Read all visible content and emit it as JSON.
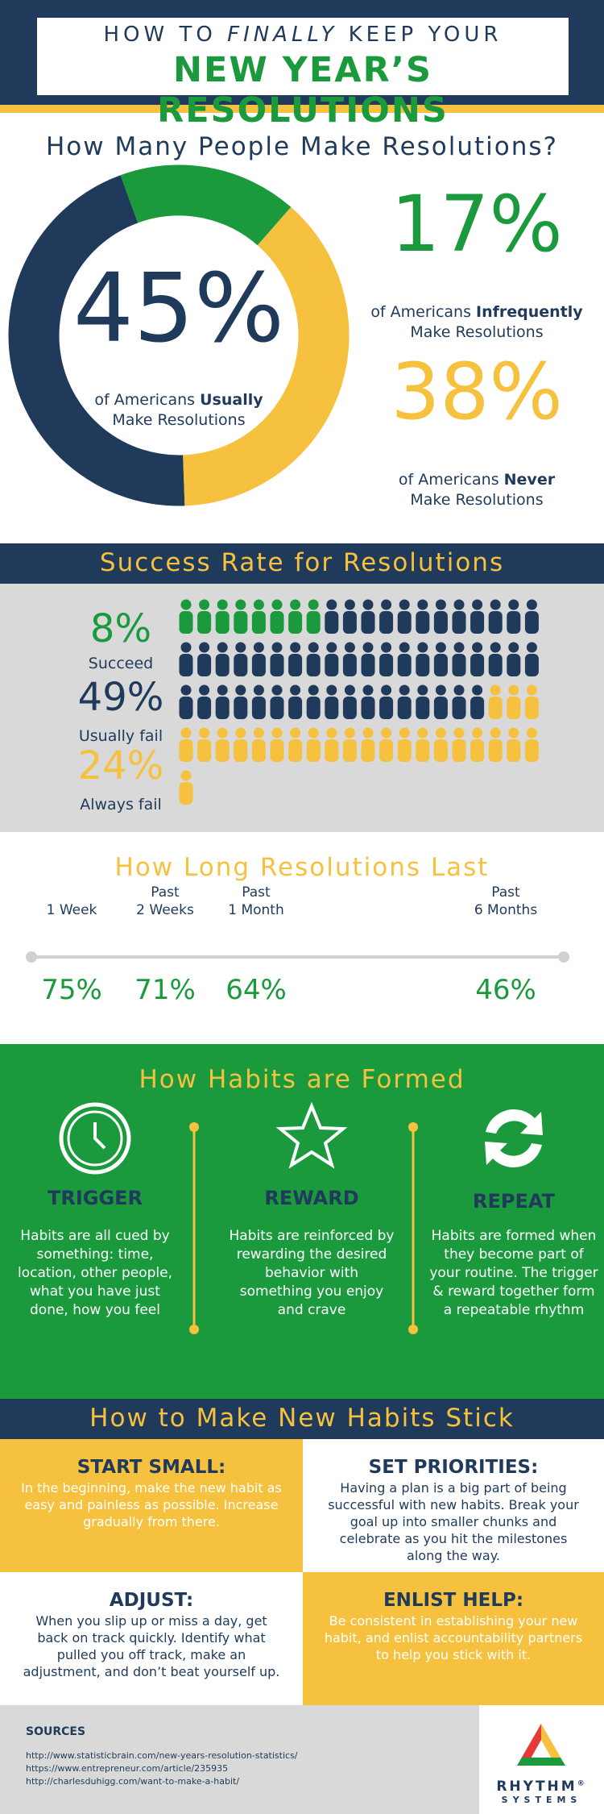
{
  "header": {
    "line1_start": "HOW TO",
    "line1_emphasis": "FINALLY",
    "line1_end": "KEEP YOUR",
    "line2": "NEW YEAR’S RESOLUTIONS"
  },
  "resolutions": {
    "title": "How Many People Make Resolutions?",
    "segments": [
      {
        "value": 45,
        "label": "45%",
        "text_start": "of Americans",
        "text_bold": "Usually",
        "text_end": "Make Resolutions",
        "color": "#1f3a5a"
      },
      {
        "value": 17,
        "label": "17%",
        "text_start": "of Americans",
        "text_bold": "Infrequently",
        "text_end": "Make Resolutions",
        "color": "#1a9a3c"
      },
      {
        "value": 38,
        "label": "38%",
        "text_start": "of Americans",
        "text_bold": "Never",
        "text_end": "Make Resolutions",
        "color": "#f5c13e"
      }
    ]
  },
  "success": {
    "title": "Success Rate for Resolutions",
    "items": [
      {
        "value": 8,
        "label": "8%",
        "caption": "Succeed",
        "color": "#1a9a3c"
      },
      {
        "value": 49,
        "label": "49%",
        "caption": "Usually fail",
        "color": "#1f3a5a"
      },
      {
        "value": 24,
        "label": "24%",
        "caption": "Always fail",
        "color": "#f5c13e"
      }
    ]
  },
  "duration": {
    "title": "How Long Resolutions Last",
    "periods": [
      {
        "lines": [
          "1 Week"
        ],
        "percent": "75%"
      },
      {
        "lines": [
          "Past",
          "2 Weeks"
        ],
        "percent": "71%"
      },
      {
        "lines": [
          "Past",
          "1 Month"
        ],
        "percent": "64%"
      },
      {
        "lines": [
          "Past",
          "6 Months"
        ],
        "percent": "46%"
      }
    ]
  },
  "habits": {
    "title": "How Habits are Formed",
    "steps": [
      {
        "title": "TRIGGER",
        "text": "Habits are all cued by something: time, location, other people, what you have just done, how you feel"
      },
      {
        "title": "REWARD",
        "text": "Habits are reinforced by rewarding the desired behavior with something you enjoy and crave"
      },
      {
        "title": "REPEAT",
        "text": "Habits are formed when they become part of your routine. The trigger & reward together form a repeatable rhythm"
      }
    ]
  },
  "stick": {
    "title": "How to Make New Habits Stick",
    "tips": [
      {
        "title": "START SMALL:",
        "text": "In the beginning, make the new habit as easy and painless as possible. Increase gradually from there."
      },
      {
        "title": "SET PRIORITIES:",
        "text": "Having a plan is a big part of being successful with new habits. Break your goal up into smaller chunks and celebrate as you hit the milestones along the way."
      },
      {
        "title": "ADJUST:",
        "text": "When you slip up or miss a day, get back on track quickly. Identify what pulled you off track, make an adjustment, and don’t beat yourself up."
      },
      {
        "title": "ENLIST HELP:",
        "text": "Be consistent in establishing your new habit, and enlist accountability partners to help you stick with it."
      }
    ]
  },
  "sources": {
    "title": "SOURCES",
    "links": [
      "http://www.statisticbrain.com/new-years-resolution-statistics/",
      "https://www.entrepreneur.com/article/235935",
      "http://charlesduhigg.com/want-to-make-a-habit/"
    ]
  },
  "logo": {
    "name": "RHYTHM",
    "mark": "®",
    "tagline": "SYSTEMS"
  }
}
